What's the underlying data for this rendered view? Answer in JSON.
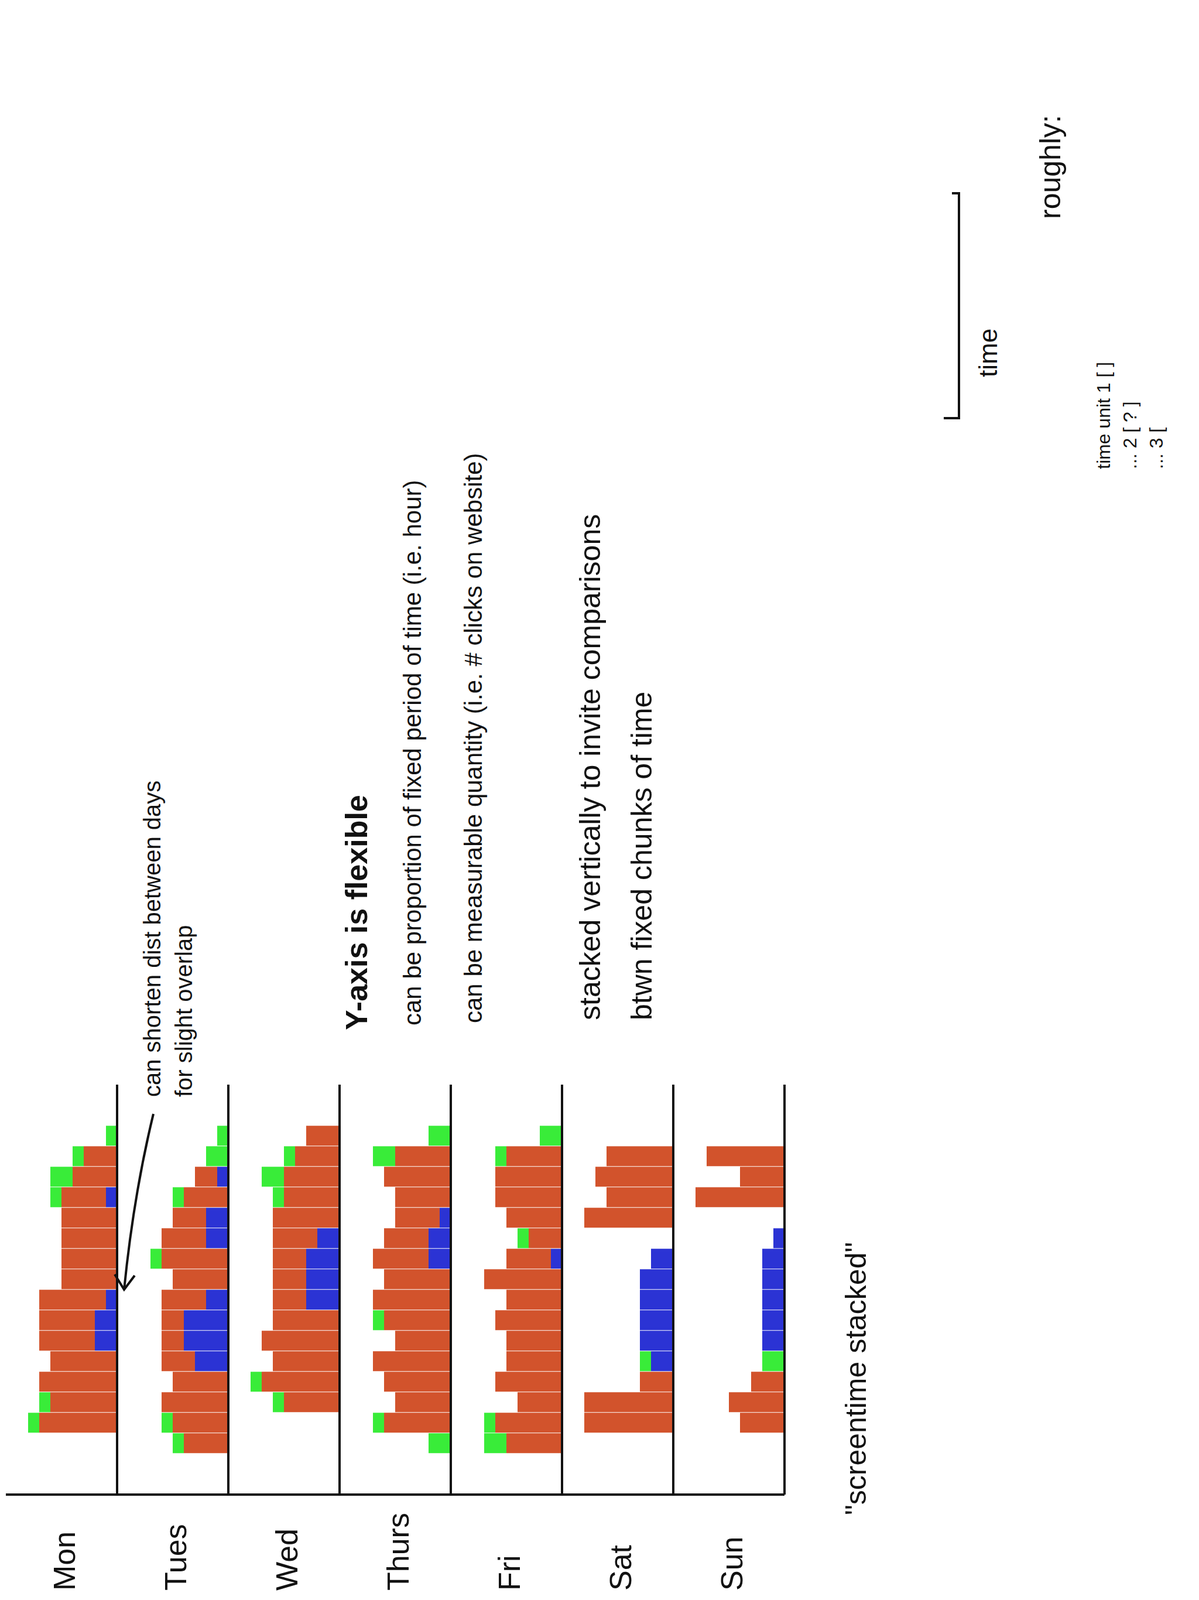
{
  "chart_data": [
    {
      "type": "bar",
      "title": "Mon",
      "stacked": true,
      "tick_labels": false,
      "ylim": [
        0,
        10
      ],
      "categories": [
        null,
        null,
        null,
        null,
        null,
        null,
        null,
        null,
        null,
        null,
        null,
        null,
        null,
        null,
        null,
        null,
        null,
        null,
        null,
        null
      ],
      "series": [
        {
          "color": "#2b33d4",
          "values": [
            0,
            0,
            0,
            0,
            0,
            0,
            0,
            2,
            2,
            1,
            0,
            0,
            0,
            0,
            1,
            0,
            0,
            0,
            0,
            0
          ]
        },
        {
          "color": "#d2532c",
          "values": [
            0,
            0,
            0,
            7,
            6,
            7,
            6,
            5,
            5,
            6,
            5,
            5,
            5,
            5,
            4,
            4,
            3,
            0,
            0,
            0
          ]
        },
        {
          "color": "#39ec39",
          "values": [
            0,
            0,
            0,
            1,
            1,
            0,
            0,
            0,
            0,
            0,
            0,
            0,
            0,
            0,
            1,
            2,
            1,
            1,
            0,
            0
          ]
        }
      ]
    },
    {
      "type": "bar",
      "title": "Tues",
      "stacked": true,
      "tick_labels": false,
      "ylim": [
        0,
        10
      ],
      "categories": [
        null,
        null,
        null,
        null,
        null,
        null,
        null,
        null,
        null,
        null,
        null,
        null,
        null,
        null,
        null,
        null,
        null,
        null,
        null,
        null
      ],
      "series": [
        {
          "color": "#2b33d4",
          "values": [
            0,
            0,
            0,
            0,
            0,
            0,
            3,
            4,
            4,
            2,
            0,
            0,
            2,
            2,
            0,
            1,
            0,
            0,
            0,
            0
          ]
        },
        {
          "color": "#d2532c",
          "values": [
            0,
            0,
            4,
            5,
            6,
            5,
            3,
            2,
            2,
            4,
            5,
            6,
            4,
            3,
            4,
            2,
            0,
            0,
            0,
            0
          ]
        },
        {
          "color": "#39ec39",
          "values": [
            0,
            0,
            1,
            1,
            0,
            0,
            0,
            0,
            0,
            0,
            0,
            1,
            0,
            0,
            1,
            0,
            2,
            1,
            0,
            0
          ]
        }
      ]
    },
    {
      "type": "bar",
      "title": "Wed",
      "stacked": true,
      "tick_labels": false,
      "ylim": [
        0,
        10
      ],
      "categories": [
        null,
        null,
        null,
        null,
        null,
        null,
        null,
        null,
        null,
        null,
        null,
        null,
        null,
        null,
        null,
        null,
        null,
        null,
        null,
        null
      ],
      "series": [
        {
          "color": "#2b33d4",
          "values": [
            0,
            0,
            0,
            0,
            0,
            0,
            0,
            0,
            0,
            3,
            3,
            3,
            2,
            0,
            0,
            0,
            0,
            0,
            0,
            0
          ]
        },
        {
          "color": "#d2532c",
          "values": [
            0,
            0,
            0,
            0,
            5,
            7,
            6,
            7,
            6,
            3,
            3,
            3,
            4,
            6,
            5,
            5,
            4,
            3,
            0,
            0
          ]
        },
        {
          "color": "#39ec39",
          "values": [
            0,
            0,
            0,
            0,
            1,
            1,
            0,
            0,
            0,
            0,
            0,
            0,
            0,
            0,
            1,
            2,
            1,
            0,
            0,
            0
          ]
        }
      ]
    },
    {
      "type": "bar",
      "title": "Thurs",
      "stacked": true,
      "tick_labels": false,
      "ylim": [
        0,
        10
      ],
      "categories": [
        null,
        null,
        null,
        null,
        null,
        null,
        null,
        null,
        null,
        null,
        null,
        null,
        null,
        null,
        null,
        null,
        null,
        null,
        null,
        null
      ],
      "series": [
        {
          "color": "#2b33d4",
          "values": [
            0,
            0,
            0,
            0,
            0,
            0,
            0,
            0,
            0,
            0,
            0,
            2,
            2,
            1,
            0,
            0,
            0,
            0,
            0,
            0
          ]
        },
        {
          "color": "#d2532c",
          "values": [
            0,
            0,
            0,
            6,
            5,
            6,
            7,
            5,
            6,
            7,
            6,
            5,
            4,
            4,
            5,
            6,
            5,
            0,
            0,
            0
          ]
        },
        {
          "color": "#39ec39",
          "values": [
            0,
            0,
            2,
            1,
            0,
            0,
            0,
            0,
            1,
            0,
            0,
            0,
            0,
            0,
            0,
            0,
            2,
            2,
            0,
            0
          ]
        }
      ]
    },
    {
      "type": "bar",
      "title": "Fri",
      "stacked": true,
      "tick_labels": false,
      "ylim": [
        0,
        10
      ],
      "categories": [
        null,
        null,
        null,
        null,
        null,
        null,
        null,
        null,
        null,
        null,
        null,
        null,
        null,
        null,
        null,
        null,
        null,
        null,
        null,
        null
      ],
      "series": [
        {
          "color": "#2b33d4",
          "values": [
            0,
            0,
            0,
            0,
            0,
            0,
            0,
            0,
            0,
            0,
            0,
            1,
            0,
            0,
            0,
            0,
            0,
            0,
            0,
            0
          ]
        },
        {
          "color": "#d2532c",
          "values": [
            0,
            0,
            5,
            6,
            4,
            6,
            5,
            5,
            6,
            5,
            7,
            4,
            3,
            5,
            6,
            6,
            5,
            0,
            0,
            0
          ]
        },
        {
          "color": "#39ec39",
          "values": [
            0,
            0,
            2,
            1,
            0,
            0,
            0,
            0,
            0,
            0,
            0,
            0,
            1,
            0,
            0,
            0,
            1,
            2,
            0,
            0
          ]
        }
      ]
    },
    {
      "type": "bar",
      "title": "Sat",
      "stacked": true,
      "tick_labels": false,
      "ylim": [
        0,
        10
      ],
      "categories": [
        null,
        null,
        null,
        null,
        null,
        null,
        null,
        null,
        null,
        null,
        null,
        null,
        null,
        null,
        null,
        null,
        null,
        null,
        null,
        null
      ],
      "series": [
        {
          "color": "#2b33d4",
          "values": [
            0,
            0,
            0,
            0,
            0,
            0,
            2,
            3,
            3,
            3,
            3,
            2,
            0,
            0,
            0,
            0,
            0,
            0,
            0,
            0
          ]
        },
        {
          "color": "#d2532c",
          "values": [
            0,
            0,
            0,
            8,
            8,
            3,
            0,
            0,
            0,
            0,
            0,
            0,
            0,
            8,
            6,
            7,
            6,
            0,
            0,
            0
          ]
        },
        {
          "color": "#39ec39",
          "values": [
            0,
            0,
            0,
            0,
            0,
            0,
            1,
            0,
            0,
            0,
            0,
            0,
            0,
            0,
            0,
            0,
            0,
            0,
            0,
            0
          ]
        }
      ]
    },
    {
      "type": "bar",
      "title": "Sun",
      "stacked": true,
      "tick_labels": false,
      "ylim": [
        0,
        10
      ],
      "categories": [
        null,
        null,
        null,
        null,
        null,
        null,
        null,
        null,
        null,
        null,
        null,
        null,
        null,
        null,
        null,
        null,
        null,
        null,
        null,
        null
      ],
      "series": [
        {
          "color": "#2b33d4",
          "values": [
            0,
            0,
            0,
            0,
            0,
            0,
            0,
            2,
            2,
            2,
            2,
            2,
            1,
            0,
            0,
            0,
            0,
            0,
            0,
            0
          ]
        },
        {
          "color": "#d2532c",
          "values": [
            0,
            0,
            0,
            4,
            5,
            3,
            0,
            0,
            0,
            0,
            0,
            0,
            0,
            0,
            8,
            4,
            7,
            0,
            0,
            0
          ]
        },
        {
          "color": "#39ec39",
          "values": [
            0,
            0,
            0,
            0,
            0,
            0,
            2,
            0,
            0,
            0,
            0,
            0,
            0,
            0,
            0,
            0,
            0,
            0,
            0,
            0
          ]
        }
      ]
    }
  ],
  "caption": "\"screentime stacked\"",
  "annotations": {
    "overlap_note": [
      "can shorten dist between days",
      "for slight overlap"
    ],
    "y_axis_heading": "Y-axis is flexible",
    "y_axis_notes": [
      "can be proportion of fixed period of time (i.e. hour)",
      "can be measurable quantity (i.e. # clicks on website)"
    ],
    "stack_note": [
      "stacked vertically to invite comparisons",
      "btwn fixed chunks of time"
    ]
  },
  "sketch": {
    "heading": "roughly:",
    "items": [
      "time unit 1 [ ]",
      "... 2 [ ? ]",
      "... 3 ["
    ],
    "axis_label": "time"
  }
}
